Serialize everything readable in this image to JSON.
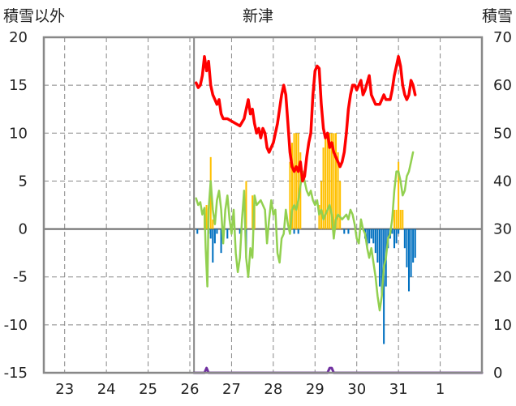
{
  "chart_data": {
    "type": "line",
    "title": "新津",
    "y_left_label": "積雪以外",
    "y_right_label": "積雪",
    "y_left_range": [
      -15,
      20
    ],
    "y_left_ticks": [
      "20",
      "15",
      "10",
      "5",
      "0",
      "-5",
      "-10",
      "-15"
    ],
    "y_right_range": [
      0,
      70
    ],
    "y_right_ticks": [
      "70",
      "60",
      "50",
      "40",
      "30",
      "20",
      "10",
      "0"
    ],
    "x_range_days": [
      0,
      10.5
    ],
    "x_tick_labels": [
      "23",
      "24",
      "25",
      "26",
      "27",
      "28",
      "29",
      "30",
      "31",
      "1"
    ],
    "grid": true,
    "colors": {
      "temperature": "#ff0000",
      "snow_depth": "#92d050",
      "snowfall": "#ffc000",
      "precipitation": "#0070c0",
      "baseline": "#7030a0"
    },
    "series": [
      {
        "axis": "right",
        "kind": "line",
        "points": [
          [
            3.65,
            60.5
          ],
          [
            3.7,
            59.5
          ],
          [
            3.75,
            60
          ],
          [
            3.8,
            62
          ],
          [
            3.85,
            66
          ],
          [
            3.9,
            63
          ],
          [
            3.95,
            65
          ],
          [
            4.0,
            60
          ],
          [
            4.05,
            58
          ],
          [
            4.1,
            57
          ],
          [
            4.15,
            56
          ],
          [
            4.2,
            57
          ],
          [
            4.25,
            54
          ],
          [
            4.3,
            53
          ],
          [
            4.4,
            53
          ],
          [
            4.5,
            52.5
          ],
          [
            4.6,
            52
          ],
          [
            4.7,
            51.5
          ],
          [
            4.8,
            53
          ],
          [
            4.9,
            57
          ],
          [
            4.95,
            54
          ],
          [
            5.0,
            55
          ],
          [
            5.05,
            52
          ],
          [
            5.1,
            50
          ],
          [
            5.15,
            51
          ],
          [
            5.2,
            49
          ],
          [
            5.25,
            51
          ],
          [
            5.3,
            50
          ],
          [
            5.35,
            47
          ],
          [
            5.4,
            46
          ],
          [
            5.45,
            47
          ],
          [
            5.5,
            48
          ],
          [
            5.6,
            52
          ],
          [
            5.7,
            58
          ],
          [
            5.75,
            60
          ],
          [
            5.8,
            58
          ],
          [
            5.85,
            52
          ],
          [
            5.9,
            46
          ],
          [
            5.95,
            43
          ],
          [
            6.0,
            42
          ],
          [
            6.05,
            43
          ],
          [
            6.1,
            42
          ],
          [
            6.15,
            44
          ],
          [
            6.2,
            40
          ],
          [
            6.25,
            41
          ],
          [
            6.3,
            45
          ],
          [
            6.35,
            48
          ],
          [
            6.4,
            50
          ],
          [
            6.45,
            58
          ],
          [
            6.5,
            63
          ],
          [
            6.55,
            64
          ],
          [
            6.6,
            63.5
          ],
          [
            6.65,
            56
          ],
          [
            6.7,
            51
          ],
          [
            6.75,
            49
          ],
          [
            6.8,
            50
          ],
          [
            6.85,
            47
          ],
          [
            6.9,
            48
          ],
          [
            6.95,
            46
          ],
          [
            7.0,
            45
          ],
          [
            7.05,
            44
          ],
          [
            7.1,
            43
          ],
          [
            7.15,
            44
          ],
          [
            7.2,
            46
          ],
          [
            7.25,
            50
          ],
          [
            7.3,
            55
          ],
          [
            7.35,
            58
          ],
          [
            7.4,
            60
          ],
          [
            7.45,
            60
          ],
          [
            7.5,
            59
          ],
          [
            7.55,
            60
          ],
          [
            7.6,
            61
          ],
          [
            7.65,
            58
          ],
          [
            7.7,
            59
          ],
          [
            7.8,
            62
          ],
          [
            7.85,
            58
          ],
          [
            7.9,
            57
          ],
          [
            7.95,
            56
          ],
          [
            8.0,
            56
          ],
          [
            8.05,
            56
          ],
          [
            8.1,
            57
          ],
          [
            8.15,
            58
          ],
          [
            8.2,
            57
          ],
          [
            8.3,
            57
          ],
          [
            8.35,
            59
          ],
          [
            8.4,
            62
          ],
          [
            8.45,
            64
          ],
          [
            8.5,
            66
          ],
          [
            8.55,
            64
          ],
          [
            8.6,
            60
          ],
          [
            8.65,
            58
          ],
          [
            8.7,
            57
          ],
          [
            8.75,
            58
          ],
          [
            8.8,
            61
          ],
          [
            8.85,
            60
          ],
          [
            8.9,
            58
          ]
        ]
      },
      {
        "axis": "left",
        "kind": "line",
        "points": [
          [
            3.65,
            3.2
          ],
          [
            3.7,
            2.5
          ],
          [
            3.75,
            2.8
          ],
          [
            3.8,
            1.5
          ],
          [
            3.85,
            2.2
          ],
          [
            3.88,
            -2
          ],
          [
            3.92,
            -6
          ],
          [
            3.95,
            2
          ],
          [
            4.0,
            5
          ],
          [
            4.05,
            2
          ],
          [
            4.1,
            0.5
          ],
          [
            4.15,
            3
          ],
          [
            4.2,
            4
          ],
          [
            4.25,
            2
          ],
          [
            4.3,
            -1.5
          ],
          [
            4.35,
            2
          ],
          [
            4.4,
            3.5
          ],
          [
            4.45,
            1
          ],
          [
            4.5,
            -0.5
          ],
          [
            4.55,
            2
          ],
          [
            4.6,
            -2.5
          ],
          [
            4.65,
            -4.5
          ],
          [
            4.7,
            -3
          ],
          [
            4.75,
            1
          ],
          [
            4.8,
            4
          ],
          [
            4.85,
            -3
          ],
          [
            4.9,
            -5
          ],
          [
            4.95,
            -2
          ],
          [
            5.0,
            -3
          ],
          [
            5.05,
            3.5
          ],
          [
            5.1,
            2.5
          ],
          [
            5.2,
            3
          ],
          [
            5.3,
            2
          ],
          [
            5.35,
            -1.5
          ],
          [
            5.4,
            1
          ],
          [
            5.45,
            3
          ],
          [
            5.5,
            1.5
          ],
          [
            5.55,
            2
          ],
          [
            5.6,
            -2.5
          ],
          [
            5.65,
            -3.5
          ],
          [
            5.7,
            -1
          ],
          [
            5.75,
            -0.5
          ],
          [
            5.8,
            2
          ],
          [
            5.85,
            0.5
          ],
          [
            5.9,
            -0.5
          ],
          [
            5.95,
            2
          ],
          [
            6.0,
            2.5
          ],
          [
            6.05,
            2
          ],
          [
            6.1,
            3
          ],
          [
            6.15,
            4.5
          ],
          [
            6.2,
            6
          ],
          [
            6.25,
            5
          ],
          [
            6.3,
            4
          ],
          [
            6.35,
            3.5
          ],
          [
            6.4,
            4
          ],
          [
            6.45,
            3
          ],
          [
            6.5,
            2.5
          ],
          [
            6.55,
            3
          ],
          [
            6.6,
            1.5
          ],
          [
            6.65,
            2
          ],
          [
            6.7,
            1
          ],
          [
            6.75,
            1.5
          ],
          [
            6.8,
            2
          ],
          [
            6.85,
            2.5
          ],
          [
            6.9,
            1.5
          ],
          [
            6.95,
            -1
          ],
          [
            7.0,
            1
          ],
          [
            7.05,
            1.5
          ],
          [
            7.15,
            1
          ],
          [
            7.25,
            1.5
          ],
          [
            7.3,
            1
          ],
          [
            7.35,
            2
          ],
          [
            7.4,
            1.5
          ],
          [
            7.45,
            0.5
          ],
          [
            7.5,
            -1
          ],
          [
            7.55,
            -1.5
          ],
          [
            7.6,
            1
          ],
          [
            7.65,
            0
          ],
          [
            7.7,
            -0.5
          ],
          [
            7.75,
            -2
          ],
          [
            7.8,
            -3
          ],
          [
            7.85,
            -2
          ],
          [
            7.9,
            -3.5
          ],
          [
            7.95,
            -5
          ],
          [
            8.0,
            -7
          ],
          [
            8.05,
            -8.5
          ],
          [
            8.1,
            -7
          ],
          [
            8.15,
            -4
          ],
          [
            8.2,
            -3
          ],
          [
            8.25,
            -1
          ],
          [
            8.3,
            -0.5
          ],
          [
            8.35,
            1
          ],
          [
            8.4,
            4
          ],
          [
            8.45,
            6
          ],
          [
            8.5,
            6
          ],
          [
            8.55,
            5
          ],
          [
            8.6,
            3.5
          ],
          [
            8.65,
            4
          ],
          [
            8.7,
            5.5
          ],
          [
            8.75,
            6
          ],
          [
            8.8,
            7
          ],
          [
            8.85,
            8
          ]
        ]
      },
      {
        "axis": "right",
        "kind": "bar",
        "bar_width_days": 0.04,
        "points": [
          [
            3.85,
            33
          ],
          [
            3.9,
            35
          ],
          [
            4.0,
            45
          ],
          [
            4.05,
            32
          ],
          [
            4.5,
            29
          ],
          [
            4.85,
            40
          ],
          [
            5.0,
            37
          ],
          [
            5.05,
            35
          ],
          [
            5.9,
            44
          ],
          [
            5.95,
            48
          ],
          [
            6.0,
            50
          ],
          [
            6.05,
            50
          ],
          [
            6.1,
            50
          ],
          [
            6.15,
            46
          ],
          [
            6.6,
            35
          ],
          [
            6.65,
            40
          ],
          [
            6.7,
            47
          ],
          [
            6.75,
            50
          ],
          [
            6.8,
            50
          ],
          [
            6.85,
            50
          ],
          [
            6.9,
            50
          ],
          [
            6.95,
            50
          ],
          [
            7.0,
            50
          ],
          [
            7.05,
            46
          ],
          [
            7.1,
            40
          ],
          [
            8.4,
            34
          ],
          [
            8.45,
            34
          ],
          [
            8.5,
            44
          ],
          [
            8.55,
            34
          ],
          [
            8.6,
            34
          ]
        ]
      },
      {
        "axis": "left",
        "kind": "bar",
        "bar_width_days": 0.04,
        "points": [
          [
            3.68,
            -0.5
          ],
          [
            3.95,
            -0.5
          ],
          [
            4.0,
            -1
          ],
          [
            4.05,
            -3.5
          ],
          [
            4.1,
            -1.5
          ],
          [
            4.15,
            -0.5
          ],
          [
            4.25,
            -2.5
          ],
          [
            4.4,
            -1
          ],
          [
            4.5,
            -0.5
          ],
          [
            4.7,
            -0.5
          ],
          [
            4.85,
            -3
          ],
          [
            6.0,
            -0.5
          ],
          [
            6.1,
            -0.5
          ],
          [
            7.2,
            -0.5
          ],
          [
            7.3,
            -0.5
          ],
          [
            7.7,
            -1
          ],
          [
            7.75,
            -2
          ],
          [
            7.8,
            -1.5
          ],
          [
            7.85,
            -1
          ],
          [
            7.9,
            -1.5
          ],
          [
            7.95,
            -2.5
          ],
          [
            8.0,
            -3.5
          ],
          [
            8.05,
            -6
          ],
          [
            8.1,
            -7
          ],
          [
            8.15,
            -12
          ],
          [
            8.2,
            -6
          ],
          [
            8.25,
            -2
          ],
          [
            8.3,
            -1
          ],
          [
            8.35,
            -0.5
          ],
          [
            8.4,
            -2
          ],
          [
            8.45,
            -1.5
          ],
          [
            8.5,
            -0.5
          ],
          [
            8.65,
            -2
          ],
          [
            8.7,
            -4
          ],
          [
            8.75,
            -6.5
          ],
          [
            8.8,
            -5
          ],
          [
            8.85,
            -3.5
          ],
          [
            8.9,
            -3
          ]
        ]
      },
      {
        "axis": "left",
        "kind": "line",
        "points": [
          [
            3.6,
            -15
          ],
          [
            3.85,
            -15
          ],
          [
            3.9,
            -14.5
          ],
          [
            3.95,
            -15
          ],
          [
            6.8,
            -15
          ],
          [
            6.85,
            -14.5
          ],
          [
            6.9,
            -14.5
          ],
          [
            6.95,
            -15
          ],
          [
            10.5,
            -15
          ]
        ]
      }
    ]
  }
}
